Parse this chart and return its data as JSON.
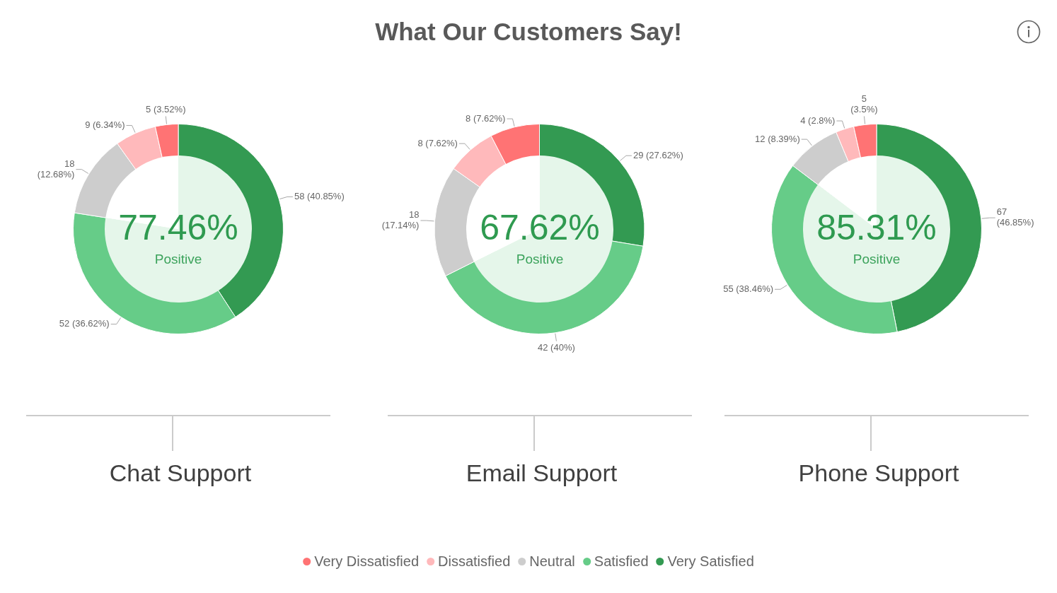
{
  "chart_data": [
    {
      "type": "other",
      "title": "What Our Customers Say!"
    },
    {
      "type": "donut",
      "title": "Chat Support",
      "categories": [
        "Very Satisfied",
        "Satisfied",
        "Neutral",
        "Dissatisfied",
        "Very Dissatisfied"
      ],
      "values": [
        58,
        52,
        18,
        9,
        5
      ],
      "colors": [
        "#339a52",
        "#66cc88",
        "#cdcdcd",
        "#ffb9bb",
        "#ff7374"
      ],
      "value_labels": [
        "58 (40.85%)",
        "52 (36.62%)",
        "18\n(12.68%)",
        "9 (6.34%)",
        "5 (3.52%)"
      ],
      "legend": "bottom"
    },
    {
      "type": "pie",
      "categories": [
        "Positive",
        null
      ],
      "values": [
        77.46,
        22.54
      ],
      "colors": [
        "#e5f6ea",
        "#ffffff"
      ],
      "value_labels": [
        "77.46%",
        null
      ]
    },
    {
      "type": "donut",
      "title": "Email Support",
      "categories": [
        null,
        null,
        null,
        null,
        null
      ],
      "values": [
        29,
        42,
        18,
        8,
        8
      ],
      "colors": [
        "#339a52",
        "#66cc88",
        "#cdcdcd",
        "#ffb9bb",
        "#ff7374"
      ],
      "value_labels": [
        "29 (27.62%)",
        "42 (40%)",
        "18\n(17.14%)",
        "8 (7.62%)",
        "8 (7.62%)"
      ]
    },
    {
      "type": "pie",
      "categories": [
        "Positive",
        null
      ],
      "values": [
        67.62,
        32.38
      ],
      "colors": [
        "#e5f6ea",
        "#ffffff"
      ],
      "value_labels": [
        "67.62%",
        null
      ]
    },
    {
      "type": "donut",
      "title": "Phone Support",
      "categories": [
        null,
        null,
        null,
        null,
        null
      ],
      "values": [
        67,
        55,
        12,
        4,
        5
      ],
      "colors": [
        "#339a52",
        "#66cc88",
        "#cdcdcd",
        "#ffb9bb",
        "#ff7374"
      ],
      "value_labels": [
        "67\n(46.85%)",
        "55 (38.46%)",
        "12 (8.39%)",
        "4 (2.8%)",
        "5\n(3.5%)"
      ]
    },
    {
      "type": "pie",
      "categories": [
        "Positive",
        null
      ],
      "values": [
        85.31,
        14.69
      ],
      "colors": [
        "#e5f6ea",
        "#ffffff"
      ],
      "value_labels": [
        "85.31%",
        null
      ]
    }
  ]
}
